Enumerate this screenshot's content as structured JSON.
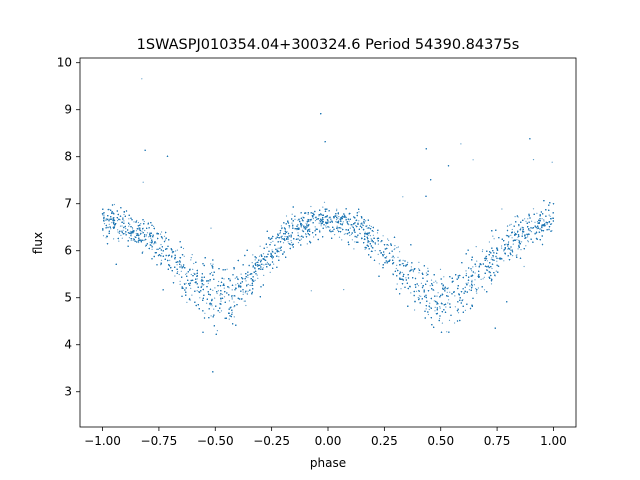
{
  "chart_data": {
    "type": "scatter",
    "title": "1SWASPJ010354.04+300324.6 Period 54390.84375s",
    "xlabel": "phase",
    "ylabel": "flux",
    "xlim": [
      -1.1,
      1.1
    ],
    "ylim": [
      2.25,
      10.1
    ],
    "xticks": [
      -1.0,
      -0.75,
      -0.5,
      -0.25,
      0.0,
      0.25,
      0.5,
      0.75,
      1.0
    ],
    "xtick_labels": [
      "−1.00",
      "−0.75",
      "−0.50",
      "−0.25",
      "0.00",
      "0.25",
      "0.50",
      "0.75",
      "1.00"
    ],
    "yticks": [
      3,
      4,
      5,
      6,
      7,
      8,
      9,
      10
    ],
    "ytick_labels": [
      "3",
      "4",
      "5",
      "6",
      "7",
      "8",
      "9",
      "10"
    ],
    "grid": false,
    "legend": "none",
    "marker_color": "#1f77b4",
    "series": [
      {
        "x": [
          -1.0,
          -0.9,
          -0.8,
          -0.7,
          -0.6,
          -0.5,
          -0.45,
          -0.4,
          -0.3,
          -0.2,
          -0.1,
          0.0,
          0.1,
          0.2,
          0.3,
          0.4,
          0.5,
          0.55,
          0.6,
          0.7,
          0.8,
          0.9,
          1.0
        ],
        "y": [
          6.65,
          6.55,
          6.3,
          5.9,
          5.4,
          5.1,
          5.05,
          5.2,
          5.75,
          6.25,
          6.55,
          6.65,
          6.55,
          6.25,
          5.75,
          5.3,
          5.05,
          5.05,
          5.2,
          5.7,
          6.2,
          6.5,
          6.65
        ]
      }
    ]
  }
}
